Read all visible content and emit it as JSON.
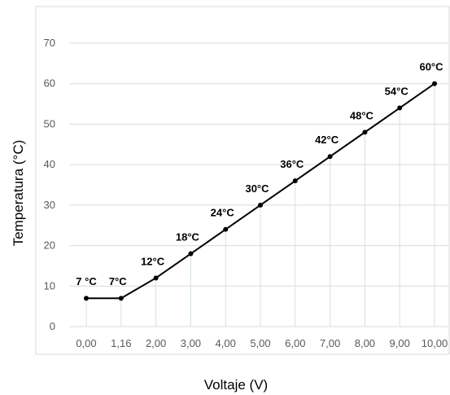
{
  "chart_data": {
    "type": "line",
    "categories": [
      "0,00",
      "1,16",
      "2,00",
      "3,00",
      "4,00",
      "5,00",
      "6,00",
      "7,00",
      "8,00",
      "9,00",
      "10,00"
    ],
    "values": [
      7,
      7,
      12,
      18,
      24,
      30,
      36,
      42,
      48,
      54,
      60
    ],
    "data_labels": [
      "7 °C",
      "7°C",
      "12°C",
      "18°C",
      "24°C",
      "30°C",
      "36°C",
      "42°C",
      "48°C",
      "54°C",
      "60°C"
    ],
    "xlabel": "Voltaje (V)",
    "ylabel": "Temperatura (°C)",
    "ylim": [
      0,
      70
    ],
    "yticks": [
      "0",
      "10",
      "20",
      "30",
      "40",
      "50",
      "60",
      "70"
    ],
    "grid": true,
    "colors": {
      "line": "#000000",
      "grid": "#d9d9d9",
      "drop_lines": "#cfe3ec"
    }
  }
}
